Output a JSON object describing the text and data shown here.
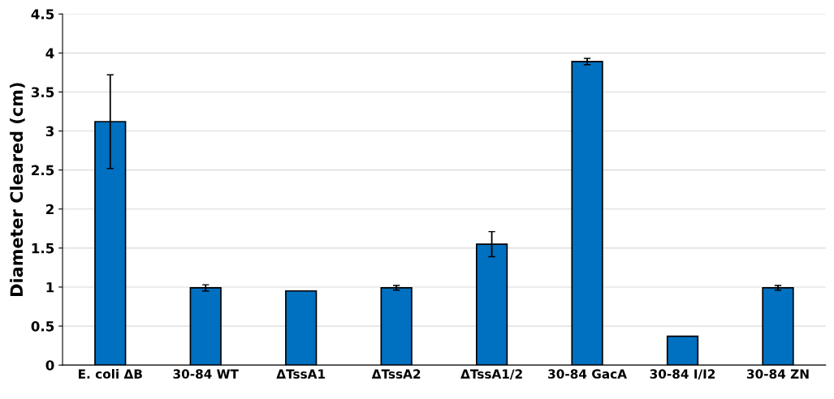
{
  "chart_data": {
    "type": "bar",
    "ylabel": "Diameter Cleared (cm)",
    "categories": [
      "E. coli ΔB",
      "30-84 WT",
      "ΔTssA1",
      "ΔTssA2",
      "ΔTssA1/2",
      "30-84 GacA",
      "30-84 I/I2",
      "30-84 ZN"
    ],
    "values": [
      3.12,
      0.99,
      0.95,
      0.99,
      1.55,
      3.89,
      0.37,
      0.99
    ],
    "errors": [
      0.6,
      0.04,
      null,
      0.03,
      0.16,
      0.04,
      null,
      0.03
    ],
    "color": "#0070c0",
    "ylim": [
      0,
      4.5
    ],
    "yticks": [
      0,
      0.5,
      1,
      1.5,
      2,
      2.5,
      3,
      3.5,
      4,
      4.5
    ],
    "grid": "y",
    "legend": false
  }
}
